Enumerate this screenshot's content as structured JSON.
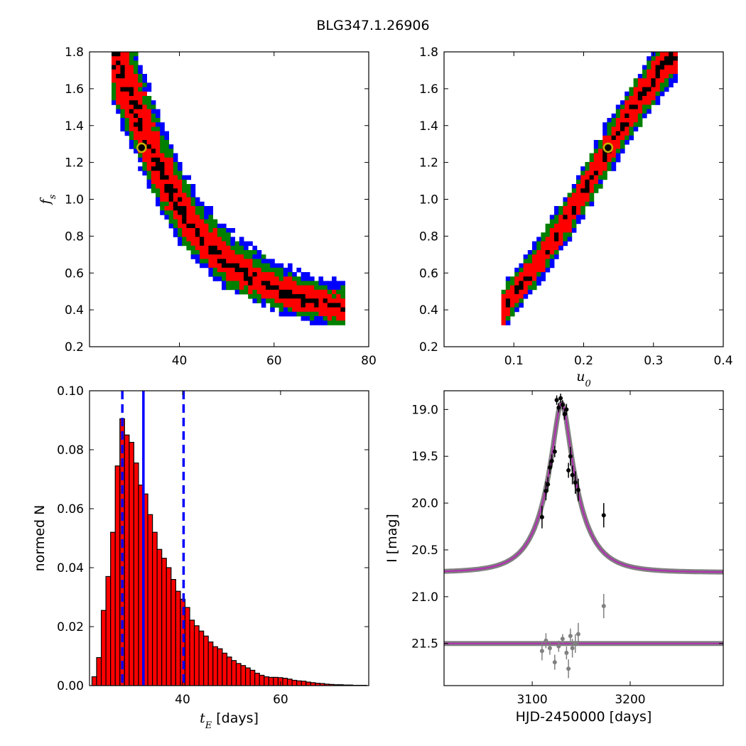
{
  "title": "BLG347.1.26906",
  "chart_data": [
    {
      "id": "fs_vs_tE",
      "type": "heatmap",
      "xlabel": "",
      "ylabel": "f",
      "ylabel_sub": "s",
      "xlim": [
        21,
        80
      ],
      "ylim": [
        0.2,
        1.8
      ],
      "xticks": [
        40,
        60,
        80
      ],
      "yticks": [
        0.2,
        0.4,
        0.6,
        0.8,
        1.0,
        1.2,
        1.4,
        1.6,
        1.8
      ],
      "ytick_labels": [
        "0.2",
        "0.4",
        "0.6",
        "0.8",
        "1.0",
        "1.2",
        "1.4",
        "1.6",
        "1.8"
      ],
      "contour_colors": {
        "1sigma": "#000000",
        "2sigma": "#ff0000",
        "3sigma": "#008000",
        "outer": "#0000ff"
      },
      "ridge": [
        [
          26,
          1.8
        ],
        [
          29,
          1.6
        ],
        [
          32,
          1.4
        ],
        [
          35,
          1.2
        ],
        [
          38,
          1.05
        ],
        [
          41,
          0.9
        ],
        [
          45,
          0.77
        ],
        [
          50,
          0.65
        ],
        [
          56,
          0.56
        ],
        [
          62,
          0.49
        ],
        [
          68,
          0.44
        ],
        [
          75,
          0.4
        ]
      ],
      "best_fit": {
        "x": 32,
        "y": 1.28
      }
    },
    {
      "id": "fs_vs_u0",
      "type": "heatmap",
      "xlabel": "u",
      "xlabel_sub": "0",
      "ylabel": "",
      "xlim": [
        0.0,
        0.4
      ],
      "ylim": [
        0.2,
        1.8
      ],
      "xticks": [
        0.1,
        0.2,
        0.3,
        0.4
      ],
      "xtick_labels": [
        "0.1",
        "0.2",
        "0.3",
        "0.4"
      ],
      "yticks": [
        0.2,
        0.4,
        0.6,
        0.8,
        1.0,
        1.2,
        1.4,
        1.6,
        1.8
      ],
      "ytick_labels": [
        "0.2",
        "0.4",
        "0.6",
        "0.8",
        "1.0",
        "1.2",
        "1.4",
        "1.6",
        "1.8"
      ],
      "contour_colors": {
        "1sigma": "#000000",
        "2sigma": "#ff0000",
        "3sigma": "#008000",
        "outer": "#0000ff"
      },
      "ridge": [
        [
          0.08,
          0.38
        ],
        [
          0.1,
          0.48
        ],
        [
          0.13,
          0.63
        ],
        [
          0.16,
          0.8
        ],
        [
          0.19,
          0.98
        ],
        [
          0.215,
          1.14
        ],
        [
          0.24,
          1.3
        ],
        [
          0.265,
          1.45
        ],
        [
          0.29,
          1.6
        ],
        [
          0.32,
          1.75
        ],
        [
          0.335,
          1.8
        ]
      ],
      "best_fit": {
        "x": 0.235,
        "y": 1.28
      }
    },
    {
      "id": "tE_histogram",
      "type": "bar",
      "xlabel": "t",
      "xlabel_sub": "E",
      "xlabel_suffix": " [days]",
      "ylabel": "normed N",
      "xlim": [
        21,
        78
      ],
      "ylim": [
        0.0,
        0.1
      ],
      "xticks": [
        40,
        60
      ],
      "yticks": [
        0.0,
        0.02,
        0.04,
        0.06,
        0.08,
        0.1
      ],
      "ytick_labels": [
        "0.00",
        "0.02",
        "0.04",
        "0.06",
        "0.08",
        "0.10"
      ],
      "bin_start": 21.5,
      "bin_width": 0.95,
      "values": [
        0.003,
        0.0095,
        0.0255,
        0.037,
        0.052,
        0.0745,
        0.0905,
        0.085,
        0.0825,
        0.0755,
        0.068,
        0.065,
        0.058,
        0.052,
        0.0462,
        0.0432,
        0.04,
        0.036,
        0.032,
        0.0293,
        0.0265,
        0.0222,
        0.0203,
        0.0185,
        0.0168,
        0.0148,
        0.0132,
        0.0125,
        0.011,
        0.0097,
        0.0085,
        0.0075,
        0.0068,
        0.006,
        0.0052,
        0.0042,
        0.0035,
        0.003,
        0.0028,
        0.0028,
        0.0027,
        0.0025,
        0.0022,
        0.0018,
        0.0016,
        0.0015,
        0.0012,
        0.001,
        0.0008,
        0.0007,
        0.0005,
        0.0004,
        0.0003,
        0.0003,
        0.0002,
        0.0002,
        0.0001,
        0.0001,
        0.0001
      ],
      "bar_color": "#ff0000",
      "lines": [
        {
          "x": 32,
          "style": "solid",
          "color": "#0000ff"
        },
        {
          "x": 27.7,
          "style": "dashed",
          "color": "#0000ff"
        },
        {
          "x": 40.2,
          "style": "dashed",
          "color": "#0000ff"
        }
      ]
    },
    {
      "id": "light_curve",
      "type": "scatter",
      "xlabel": "HJD-2450000 [days]",
      "ylabel": "I [mag]",
      "xlim": [
        3010,
        3295
      ],
      "ylim": [
        21.95,
        18.8
      ],
      "xticks": [
        3100,
        3200
      ],
      "yticks": [
        19.0,
        19.5,
        20.0,
        20.5,
        21.0,
        21.5
      ],
      "ytick_labels": [
        "19.0",
        "19.5",
        "20.0",
        "20.5",
        "21.0",
        "21.5"
      ],
      "model": {
        "t0": 3130,
        "tE": 32,
        "u0": 0.235,
        "fs": 1.28,
        "baseline": 20.74,
        "color": "#b030b0"
      },
      "residual_offset": 21.5,
      "data_points": [
        {
          "x": 3110,
          "y": 20.15,
          "err": 0.12
        },
        {
          "x": 3114,
          "y": 19.87,
          "err": 0.1
        },
        {
          "x": 3116,
          "y": 19.8,
          "err": 0.08
        },
        {
          "x": 3118,
          "y": 19.62,
          "err": 0.07
        },
        {
          "x": 3120,
          "y": 19.55,
          "err": 0.07
        },
        {
          "x": 3123,
          "y": 19.45,
          "err": 0.06
        },
        {
          "x": 3125,
          "y": 18.9,
          "err": 0.05
        },
        {
          "x": 3127,
          "y": 18.98,
          "err": 0.05
        },
        {
          "x": 3129,
          "y": 18.88,
          "err": 0.05
        },
        {
          "x": 3131,
          "y": 18.95,
          "err": 0.05
        },
        {
          "x": 3133,
          "y": 19.05,
          "err": 0.06
        },
        {
          "x": 3135,
          "y": 19.0,
          "err": 0.06
        },
        {
          "x": 3137,
          "y": 19.65,
          "err": 0.08
        },
        {
          "x": 3139,
          "y": 19.5,
          "err": 0.1
        },
        {
          "x": 3141,
          "y": 19.7,
          "err": 0.1
        },
        {
          "x": 3144,
          "y": 19.78,
          "err": 0.12
        },
        {
          "x": 3147,
          "y": 19.86,
          "err": 0.12
        },
        {
          "x": 3173,
          "y": 20.13,
          "err": 0.13
        }
      ],
      "residual_points": [
        {
          "x": 3110,
          "y": 21.58,
          "err": 0.1
        },
        {
          "x": 3114,
          "y": 21.47,
          "err": 0.08
        },
        {
          "x": 3118,
          "y": 21.55,
          "err": 0.07
        },
        {
          "x": 3123,
          "y": 21.7,
          "err": 0.08
        },
        {
          "x": 3127,
          "y": 21.53,
          "err": 0.06
        },
        {
          "x": 3131,
          "y": 21.45,
          "err": 0.05
        },
        {
          "x": 3135,
          "y": 21.6,
          "err": 0.07
        },
        {
          "x": 3137,
          "y": 21.77,
          "err": 0.1
        },
        {
          "x": 3139,
          "y": 21.42,
          "err": 0.08
        },
        {
          "x": 3141,
          "y": 21.55,
          "err": 0.1
        },
        {
          "x": 3144,
          "y": 21.5,
          "err": 0.1
        },
        {
          "x": 3147,
          "y": 21.4,
          "err": 0.12
        },
        {
          "x": 3173,
          "y": 21.1,
          "err": 0.13
        }
      ]
    }
  ]
}
